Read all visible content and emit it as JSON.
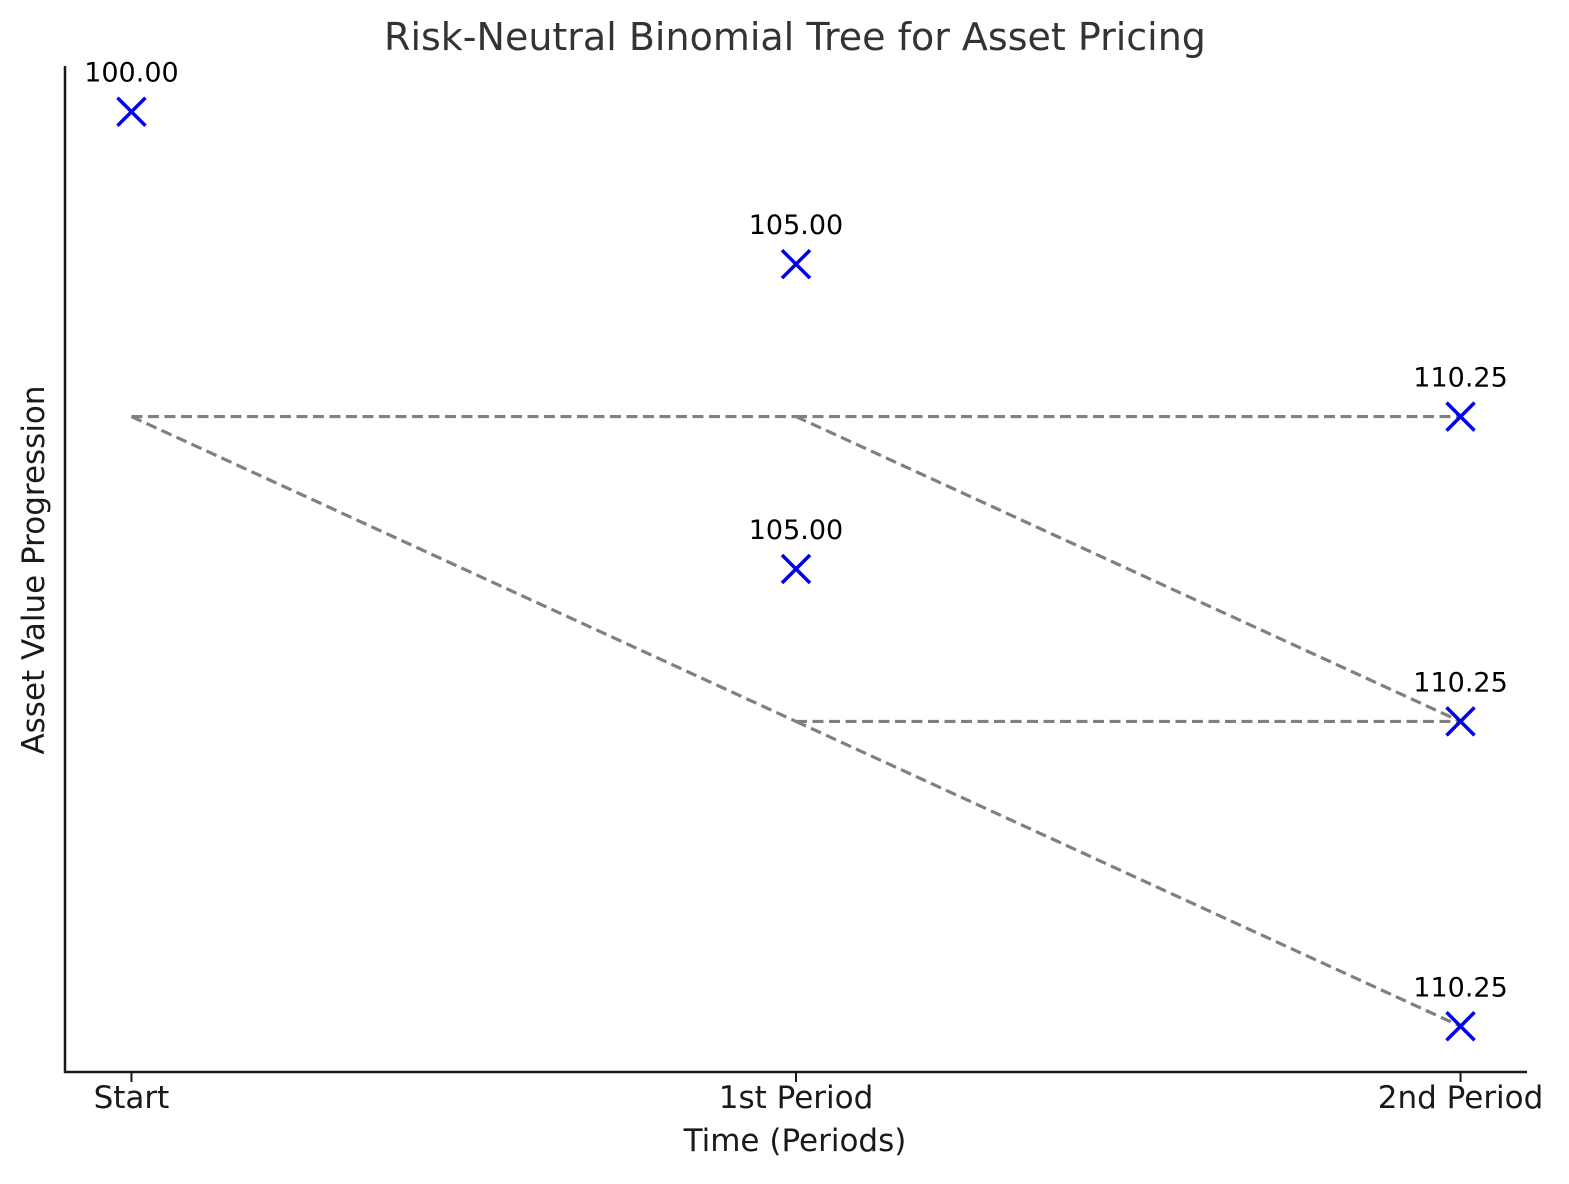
{
  "chart_data": {
    "type": "scatter",
    "title": "Risk-Neutral Binomial Tree for Asset Pricing",
    "xlabel": "Time (Periods)",
    "ylabel": "Asset Value Progression",
    "x_categories": [
      "Start",
      "1st Period",
      "2nd Period"
    ],
    "xlim": [
      -0.1,
      2.1
    ],
    "ylim": [
      -2.15,
      1.15
    ],
    "grid": false,
    "legend": "none",
    "points": [
      {
        "x": 0,
        "y": 1,
        "label": "100.00"
      },
      {
        "x": 1,
        "y": 0.5,
        "label": "105.00"
      },
      {
        "x": 1,
        "y": -0.5,
        "label": "105.00"
      },
      {
        "x": 2,
        "y": 0,
        "label": "110.25"
      },
      {
        "x": 2,
        "y": -1,
        "label": "110.25"
      },
      {
        "x": 2,
        "y": -2,
        "label": "110.25"
      }
    ],
    "edges": [
      {
        "from": [
          0,
          0
        ],
        "to": [
          1,
          0
        ]
      },
      {
        "from": [
          0,
          0
        ],
        "to": [
          1,
          -1
        ]
      },
      {
        "from": [
          1,
          0
        ],
        "to": [
          2,
          0
        ]
      },
      {
        "from": [
          1,
          0
        ],
        "to": [
          2,
          -1
        ]
      },
      {
        "from": [
          1,
          -1
        ],
        "to": [
          2,
          -1
        ]
      },
      {
        "from": [
          1,
          -1
        ],
        "to": [
          2,
          -2
        ]
      }
    ],
    "colors": {
      "marker": "#0000ee",
      "edge": "#808080",
      "axis": "#1a1a1a",
      "title": "#333333"
    }
  }
}
